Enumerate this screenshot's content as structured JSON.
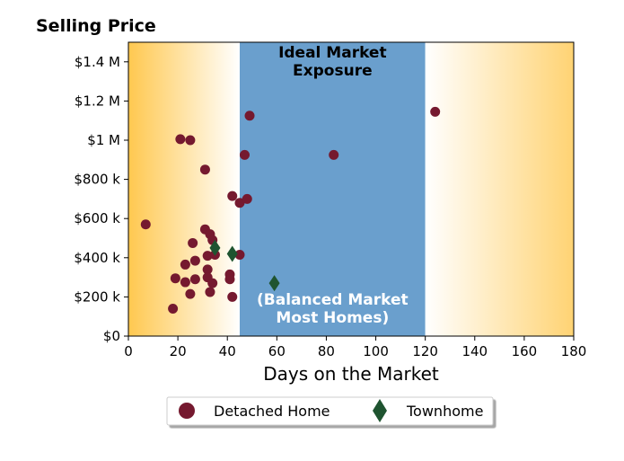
{
  "chart_data": {
    "type": "scatter",
    "title": "",
    "ylabel": "Selling Price",
    "xlabel": "Days on the Market",
    "xlim": [
      0,
      180
    ],
    "ylim": [
      0,
      1500000
    ],
    "x_ticks": [
      0,
      20,
      40,
      60,
      80,
      100,
      120,
      140,
      160,
      180
    ],
    "x_tick_labels": [
      "0",
      "20",
      "40",
      "60",
      "80",
      "100",
      "120",
      "140",
      "160",
      "180"
    ],
    "y_ticks": [
      0,
      200000,
      400000,
      600000,
      800000,
      1000000,
      1200000,
      1400000
    ],
    "y_tick_labels": [
      "$0",
      "$200 k",
      "$400 k",
      "$600 k",
      "$800 k",
      "$1 M",
      "$1.2 M",
      "$1.4 M"
    ],
    "grid": false,
    "legend_position": "bottom-center (below plot)",
    "regions": [
      {
        "x_range": [
          0,
          45
        ],
        "style": "gradient",
        "color_edge": "#FFC84F",
        "color_inner": "#FFFFFF"
      },
      {
        "x_range": [
          45,
          120
        ],
        "style": "solid",
        "color": "#6A9FCD",
        "label_top": "Ideal Market\nExposure",
        "label_top_color": "#000000",
        "label_bottom": "(Balanced Market\nMost Homes)",
        "label_bottom_color": "#FFFFFF"
      },
      {
        "x_range": [
          120,
          180
        ],
        "style": "gradient",
        "color_edge": "#FFD373",
        "color_inner": "#FFFFFF"
      }
    ],
    "series": [
      {
        "name": "Detached Home",
        "marker": "circle",
        "color": "#75192F",
        "points": [
          [
            7,
            570000
          ],
          [
            18,
            140000
          ],
          [
            19,
            295000
          ],
          [
            21,
            1005000
          ],
          [
            23,
            365000
          ],
          [
            23,
            275000
          ],
          [
            25,
            1000000
          ],
          [
            25,
            215000
          ],
          [
            26,
            475000
          ],
          [
            27,
            385000
          ],
          [
            27,
            290000
          ],
          [
            31,
            850000
          ],
          [
            31,
            545000
          ],
          [
            32,
            340000
          ],
          [
            32,
            300000
          ],
          [
            32,
            410000
          ],
          [
            33,
            520000
          ],
          [
            33,
            225000
          ],
          [
            34,
            490000
          ],
          [
            34,
            270000
          ],
          [
            35,
            415000
          ],
          [
            41,
            315000
          ],
          [
            41,
            290000
          ],
          [
            42,
            715000
          ],
          [
            42,
            200000
          ],
          [
            45,
            680000
          ],
          [
            45,
            415000
          ],
          [
            47,
            925000
          ],
          [
            48,
            700000
          ],
          [
            49,
            1125000
          ],
          [
            83,
            925000
          ],
          [
            124,
            1145000
          ]
        ]
      },
      {
        "name": "Townhome",
        "marker": "diamond",
        "color": "#1F5430",
        "points": [
          [
            35,
            450000
          ],
          [
            42,
            420000
          ],
          [
            59,
            270000
          ]
        ]
      }
    ]
  }
}
